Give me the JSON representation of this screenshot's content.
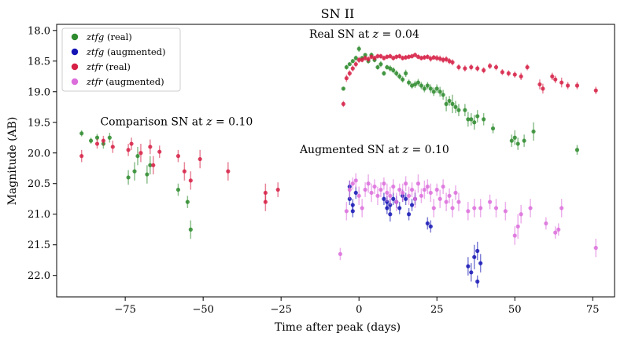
{
  "chart_data": {
    "type": "scatter",
    "title": "SN II",
    "xlabel": "Time after peak (days)",
    "ylabel": "Magnitude (AB)",
    "xlim": [
      -97,
      82
    ],
    "ylim": [
      22.35,
      17.9
    ],
    "y_inverted": true,
    "xticks": [
      -75,
      -50,
      -25,
      0,
      25,
      50,
      75
    ],
    "xtick_labels": [
      "−75",
      "−50",
      "−25",
      "0",
      "25",
      "50",
      "75"
    ],
    "yticks": [
      18.0,
      18.5,
      19.0,
      19.5,
      20.0,
      20.5,
      21.0,
      21.5,
      22.0
    ],
    "ytick_labels": [
      "18.0",
      "18.5",
      "19.0",
      "19.5",
      "20.0",
      "20.5",
      "21.0",
      "21.5",
      "22.0"
    ],
    "legend_position": "top-left",
    "annotations": [
      {
        "text": "Real SN at ",
        "zvar": "z",
        "rest": " = 0.04",
        "x": -16,
        "y": 18.12
      },
      {
        "text": "Comparison SN at ",
        "zvar": "z",
        "rest": " = 0.10",
        "x": -83,
        "y": 19.55
      },
      {
        "text": "Augmented SN at ",
        "zvar": "z",
        "rest": " = 0.10",
        "x": -19,
        "y": 20.0
      }
    ],
    "series": [
      {
        "name_italic": "ztfg",
        "name_rest": " (real)",
        "color": "#2e8b2e",
        "x": [
          -5,
          -4,
          -3,
          -2,
          -1,
          0,
          1,
          2,
          3,
          4,
          5,
          6,
          7,
          8,
          9,
          10,
          11,
          12,
          13,
          14,
          15,
          16,
          17,
          18,
          19,
          20,
          21,
          22,
          23,
          24,
          25,
          26,
          27,
          28,
          29,
          30,
          31,
          32,
          34,
          35,
          36,
          37,
          38,
          40,
          43,
          49,
          50,
          51,
          53,
          56,
          70
        ],
        "y": [
          18.95,
          18.6,
          18.55,
          18.5,
          18.45,
          18.3,
          18.45,
          18.4,
          18.5,
          18.4,
          18.48,
          18.6,
          18.55,
          18.7,
          18.6,
          18.62,
          18.65,
          18.7,
          18.75,
          18.8,
          18.7,
          18.85,
          18.9,
          18.88,
          18.85,
          18.9,
          18.95,
          18.9,
          18.95,
          19.0,
          18.95,
          19.0,
          19.05,
          19.2,
          19.15,
          19.2,
          19.25,
          19.3,
          19.3,
          19.45,
          19.45,
          19.5,
          19.4,
          19.45,
          19.6,
          19.8,
          19.75,
          19.85,
          19.8,
          19.65,
          19.95
        ],
        "err": [
          0.03,
          0.04,
          0.03,
          0.03,
          0.04,
          0.05,
          0.03,
          0.03,
          0.04,
          0.04,
          0.04,
          0.04,
          0.05,
          0.04,
          0.04,
          0.05,
          0.05,
          0.05,
          0.05,
          0.05,
          0.06,
          0.05,
          0.05,
          0.06,
          0.06,
          0.06,
          0.06,
          0.06,
          0.07,
          0.07,
          0.07,
          0.08,
          0.08,
          0.12,
          0.08,
          0.15,
          0.1,
          0.1,
          0.1,
          0.12,
          0.1,
          0.12,
          0.1,
          0.1,
          0.08,
          0.1,
          0.12,
          0.1,
          0.1,
          0.15,
          0.08
        ]
      },
      {
        "name_italic": "ztfg",
        "name_rest": " (augmented)",
        "color": "#1515b5",
        "x": [
          -3,
          -3,
          -2,
          -2,
          -1,
          8,
          9,
          9,
          10,
          10,
          11,
          12,
          13,
          14,
          15,
          16,
          17,
          18,
          22,
          23,
          35,
          36,
          37,
          38,
          38,
          39
        ],
        "y": [
          20.55,
          20.75,
          20.85,
          20.95,
          20.65,
          20.75,
          20.8,
          20.9,
          21.0,
          20.85,
          20.75,
          20.8,
          20.9,
          20.7,
          20.75,
          21.0,
          20.85,
          20.75,
          21.15,
          21.2,
          21.85,
          21.95,
          21.7,
          21.6,
          22.1,
          21.8
        ],
        "err": [
          0.1,
          0.1,
          0.1,
          0.1,
          0.1,
          0.1,
          0.1,
          0.1,
          0.12,
          0.1,
          0.1,
          0.1,
          0.1,
          0.1,
          0.1,
          0.1,
          0.1,
          0.1,
          0.1,
          0.1,
          0.15,
          0.15,
          0.2,
          0.15,
          0.1,
          0.15
        ]
      },
      {
        "name_italic": "ztfr",
        "name_rest": " (real)",
        "color": "#d62045",
        "x": [
          -5,
          -4,
          -3,
          -2,
          -1,
          0,
          1,
          2,
          3,
          4,
          5,
          6,
          7,
          8,
          9,
          10,
          11,
          12,
          13,
          14,
          15,
          16,
          17,
          18,
          19,
          20,
          21,
          22,
          23,
          24,
          25,
          26,
          27,
          28,
          29,
          30,
          32,
          34,
          36,
          38,
          40,
          42,
          44,
          46,
          48,
          50,
          52,
          54,
          58,
          59,
          62,
          63,
          65,
          67,
          70,
          76
        ],
        "y": [
          19.2,
          18.78,
          18.7,
          18.62,
          18.55,
          18.48,
          18.48,
          18.45,
          18.47,
          18.43,
          18.45,
          18.42,
          18.42,
          18.45,
          18.43,
          18.42,
          18.45,
          18.43,
          18.42,
          18.45,
          18.44,
          18.43,
          18.42,
          18.4,
          18.43,
          18.45,
          18.44,
          18.43,
          18.46,
          18.44,
          18.45,
          18.46,
          18.48,
          18.47,
          18.5,
          18.52,
          18.6,
          18.62,
          18.6,
          18.62,
          18.65,
          18.58,
          18.6,
          18.68,
          18.7,
          18.72,
          18.75,
          18.6,
          18.88,
          18.95,
          18.75,
          18.8,
          18.85,
          18.9,
          18.9,
          18.98
        ],
        "err": [
          0.05,
          0.06,
          0.05,
          0.05,
          0.05,
          0.05,
          0.04,
          0.04,
          0.05,
          0.04,
          0.04,
          0.04,
          0.04,
          0.04,
          0.04,
          0.04,
          0.04,
          0.04,
          0.04,
          0.04,
          0.04,
          0.04,
          0.04,
          0.04,
          0.04,
          0.04,
          0.04,
          0.04,
          0.05,
          0.04,
          0.05,
          0.05,
          0.05,
          0.05,
          0.05,
          0.05,
          0.05,
          0.05,
          0.05,
          0.05,
          0.05,
          0.05,
          0.05,
          0.05,
          0.05,
          0.05,
          0.06,
          0.05,
          0.08,
          0.08,
          0.06,
          0.06,
          0.08,
          0.06,
          0.06,
          0.06
        ]
      },
      {
        "name_italic": "ztfr",
        "name_rest": " (augmented)",
        "color": "#dc6edc",
        "x": [
          -6,
          -4,
          -3,
          -2,
          -1,
          0,
          1,
          2,
          3,
          4,
          5,
          6,
          7,
          8,
          9,
          10,
          11,
          12,
          13,
          14,
          15,
          16,
          17,
          18,
          19,
          20,
          21,
          22,
          23,
          24,
          25,
          26,
          27,
          28,
          29,
          30,
          31,
          32,
          35,
          37,
          39,
          42,
          44,
          47,
          50,
          51,
          52,
          55,
          60,
          63,
          64,
          65,
          76
        ],
        "y": [
          21.65,
          20.95,
          20.6,
          20.5,
          20.45,
          20.7,
          20.9,
          20.6,
          20.5,
          20.65,
          20.55,
          20.7,
          20.6,
          20.5,
          20.65,
          20.7,
          20.55,
          20.8,
          20.6,
          20.65,
          20.5,
          20.7,
          20.6,
          20.75,
          20.5,
          20.7,
          20.6,
          20.55,
          20.65,
          20.9,
          20.6,
          20.75,
          20.55,
          20.8,
          20.7,
          20.9,
          20.65,
          20.8,
          20.95,
          20.9,
          20.9,
          20.8,
          20.9,
          20.95,
          21.35,
          21.2,
          21.0,
          20.9,
          21.15,
          21.3,
          21.25,
          20.9,
          21.55
        ],
        "err": [
          0.1,
          0.15,
          0.15,
          0.1,
          0.12,
          0.15,
          0.15,
          0.12,
          0.15,
          0.15,
          0.12,
          0.15,
          0.12,
          0.1,
          0.15,
          0.15,
          0.12,
          0.15,
          0.1,
          0.15,
          0.12,
          0.15,
          0.12,
          0.15,
          0.15,
          0.12,
          0.15,
          0.12,
          0.15,
          0.15,
          0.1,
          0.15,
          0.12,
          0.15,
          0.12,
          0.15,
          0.12,
          0.15,
          0.15,
          0.15,
          0.15,
          0.12,
          0.15,
          0.15,
          0.15,
          0.2,
          0.15,
          0.15,
          0.1,
          0.1,
          0.1,
          0.15,
          0.15
        ]
      },
      {
        "name": "comparison-ztfg",
        "color": "#2e8b2e",
        "x": [
          -89,
          -86,
          -84,
          -82,
          -80,
          -74,
          -72,
          -71,
          -68,
          -67,
          -58,
          -55,
          -54
        ],
        "y": [
          19.68,
          19.8,
          19.75,
          19.85,
          19.75,
          20.4,
          20.3,
          20.05,
          20.35,
          20.2,
          20.6,
          20.8,
          21.25
        ],
        "err": [
          0.05,
          0.05,
          0.06,
          0.08,
          0.08,
          0.12,
          0.15,
          0.15,
          0.15,
          0.15,
          0.1,
          0.1,
          0.15
        ]
      },
      {
        "name": "comparison-ztfr",
        "color": "#d62045",
        "x": [
          -89,
          -84,
          -82,
          -79,
          -74,
          -73,
          -70,
          -67,
          -66,
          -64,
          -58,
          -56,
          -54,
          -51,
          -42,
          -30,
          -30,
          -26
        ],
        "y": [
          20.05,
          19.85,
          19.8,
          19.9,
          19.95,
          19.85,
          20.0,
          19.9,
          20.2,
          19.98,
          20.05,
          20.3,
          20.45,
          20.1,
          20.3,
          20.65,
          20.8,
          20.6
        ],
        "err": [
          0.1,
          0.08,
          0.08,
          0.1,
          0.1,
          0.1,
          0.15,
          0.12,
          0.15,
          0.1,
          0.1,
          0.15,
          0.15,
          0.15,
          0.15,
          0.15,
          0.15,
          0.12
        ]
      }
    ]
  }
}
